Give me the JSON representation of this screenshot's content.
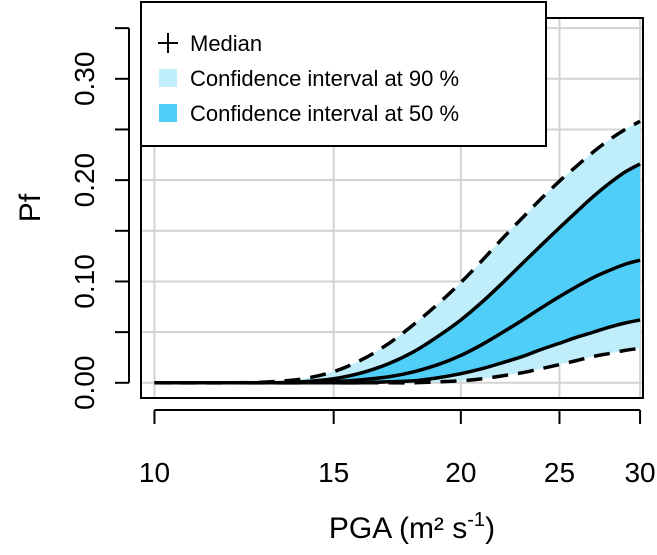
{
  "chart_data": {
    "type": "area",
    "xlabel": "PGA (m² s",
    "xlabel_sup": "-1",
    "xlabel_close": ")",
    "ylabel": "Pf",
    "xscale": "log",
    "xlim": [
      9.7,
      30.2
    ],
    "ylim": [
      -0.015,
      0.36
    ],
    "grid": true,
    "legend_position": "top-left",
    "x_ticks": [
      10,
      15,
      20,
      25,
      30
    ],
    "x_tick_labels": [
      "10",
      "15",
      "20",
      "25",
      "30"
    ],
    "y_ticks": [
      0.0,
      0.05,
      0.1,
      0.15,
      0.2,
      0.25,
      0.3,
      0.35
    ],
    "y_tick_labels": [
      "0.00",
      "",
      "0.10",
      "",
      "0.20",
      "",
      "0.30",
      ""
    ],
    "legend": [
      {
        "label": "Median",
        "kind": "plus"
      },
      {
        "label": "Confidence interval at 90 %",
        "kind": "swatch",
        "color": "#bfeefa"
      },
      {
        "label": "Confidence interval at 50 %",
        "kind": "swatch",
        "color": "#4fcff7"
      }
    ],
    "colors": {
      "ci90": "#bfeefa",
      "ci50": "#4fcff7",
      "grid": "#d3d3d3",
      "line": "#000000"
    },
    "x": [
      10,
      12,
      13,
      14,
      15,
      16,
      17,
      18,
      19,
      20,
      21,
      22,
      23,
      24,
      25,
      26,
      27,
      28,
      29,
      30
    ],
    "series": [
      {
        "name": "Confidence interval at 90 %",
        "role": "upper90",
        "values": [
          0.0,
          0.0,
          0.001,
          0.004,
          0.011,
          0.023,
          0.039,
          0.058,
          0.078,
          0.099,
          0.121,
          0.143,
          0.163,
          0.182,
          0.199,
          0.214,
          0.228,
          0.24,
          0.25,
          0.258
        ]
      },
      {
        "role": "upper50",
        "values": [
          0.0,
          0.0,
          0.0,
          0.001,
          0.004,
          0.01,
          0.019,
          0.031,
          0.046,
          0.062,
          0.08,
          0.099,
          0.118,
          0.136,
          0.153,
          0.169,
          0.184,
          0.197,
          0.208,
          0.216
        ]
      },
      {
        "name": "Median",
        "role": "median",
        "values": [
          0.0,
          0.0,
          0.0,
          0.0,
          0.001,
          0.003,
          0.006,
          0.011,
          0.018,
          0.027,
          0.038,
          0.05,
          0.062,
          0.074,
          0.085,
          0.095,
          0.104,
          0.111,
          0.117,
          0.121
        ]
      },
      {
        "role": "lower50",
        "values": [
          0.0,
          0.0,
          0.0,
          0.0,
          0.0,
          0.0,
          0.001,
          0.002,
          0.005,
          0.009,
          0.014,
          0.02,
          0.026,
          0.033,
          0.039,
          0.045,
          0.05,
          0.055,
          0.059,
          0.062
        ]
      },
      {
        "role": "lower90",
        "values": [
          0.0,
          0.0,
          0.0,
          0.0,
          0.0,
          0.0,
          0.0,
          0.0,
          0.001,
          0.002,
          0.004,
          0.007,
          0.01,
          0.014,
          0.018,
          0.022,
          0.026,
          0.029,
          0.032,
          0.034
        ]
      }
    ]
  }
}
